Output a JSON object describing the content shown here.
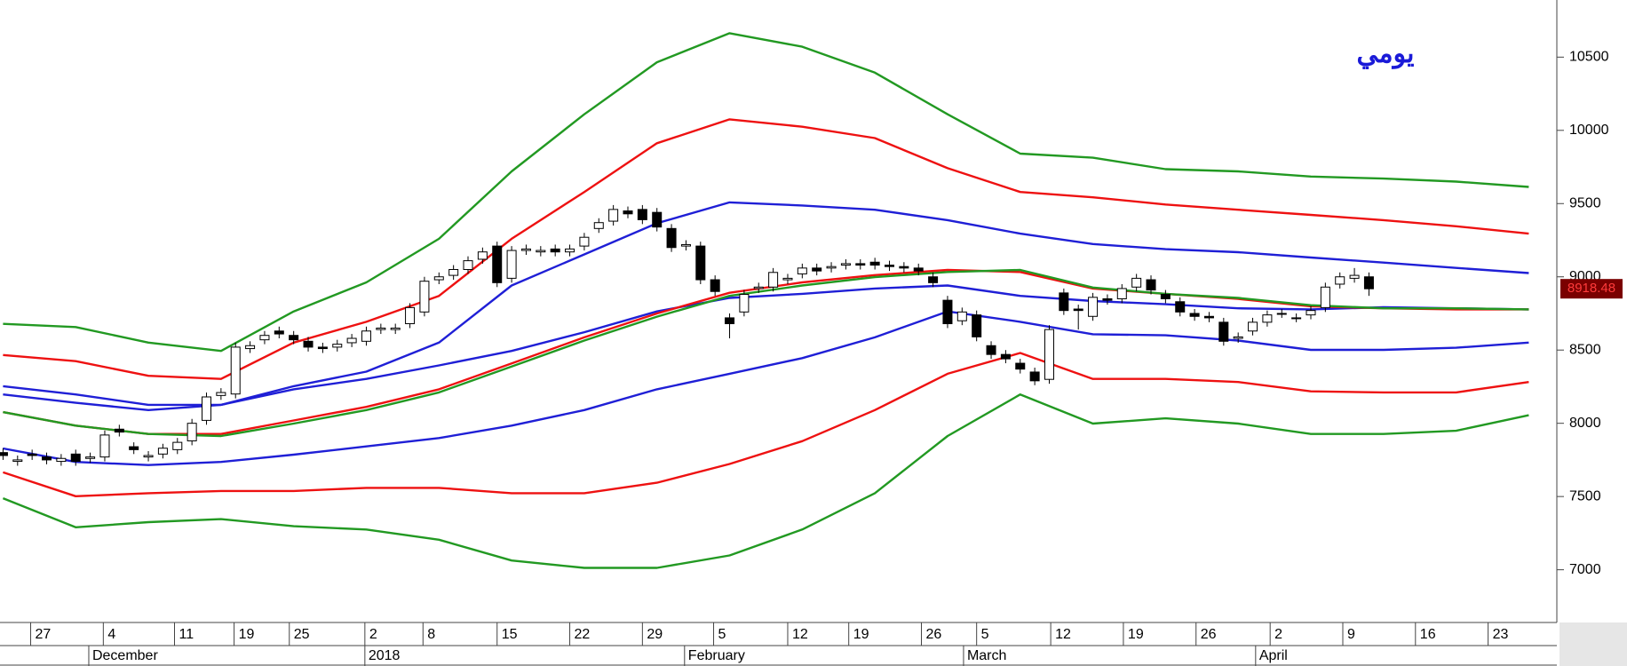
{
  "chart_data": {
    "type": "candlestick",
    "title": "يومي",
    "xlim": [
      -0.21,
      106.93
    ],
    "ylim": [
      6640,
      10890
    ],
    "yticks": [
      7000,
      7500,
      8000,
      8500,
      9000,
      9500,
      10000,
      10500
    ],
    "xticks": [
      {
        "value": 1.9,
        "label": "27"
      },
      {
        "value": 6.9,
        "label": "4"
      },
      {
        "value": 11.8,
        "label": "11"
      },
      {
        "value": 15.9,
        "label": "19"
      },
      {
        "value": 19.7,
        "label": "25"
      },
      {
        "value": 24.9,
        "label": "2"
      },
      {
        "value": 28.9,
        "label": "8"
      },
      {
        "value": 34,
        "label": "15"
      },
      {
        "value": 39,
        "label": "22"
      },
      {
        "value": 44,
        "label": "29"
      },
      {
        "value": 48.9,
        "label": "5"
      },
      {
        "value": 54,
        "label": "12"
      },
      {
        "value": 58.2,
        "label": "19"
      },
      {
        "value": 63.2,
        "label": "26"
      },
      {
        "value": 67,
        "label": "5"
      },
      {
        "value": 72.1,
        "label": "12"
      },
      {
        "value": 77.1,
        "label": "19"
      },
      {
        "value": 82.1,
        "label": "26"
      },
      {
        "value": 87.2,
        "label": "2"
      },
      {
        "value": 92.2,
        "label": "9"
      },
      {
        "value": 97.2,
        "label": "16"
      },
      {
        "value": 102.2,
        "label": "23"
      }
    ],
    "month_ticks": [
      {
        "value": 5.9,
        "label": "December"
      },
      {
        "value": 24.9,
        "label": "2018"
      },
      {
        "value": 46.9,
        "label": "February"
      },
      {
        "value": 66.1,
        "label": "March"
      },
      {
        "value": 86.2,
        "label": "April"
      }
    ],
    "current_price": 8918.48,
    "candles": {
      "up_color": "#ffffff",
      "down_color": "#000000",
      "x": [
        0,
        1,
        2,
        3,
        4,
        5,
        6,
        7,
        8,
        9,
        10,
        11,
        12,
        13,
        14,
        15,
        16,
        17,
        18,
        19,
        20,
        21,
        22,
        23,
        24,
        25,
        26,
        27,
        28,
        29,
        30,
        31,
        32,
        33,
        34,
        35,
        36,
        37,
        38,
        39,
        40,
        41,
        42,
        43,
        44,
        45,
        46,
        47,
        48,
        49,
        50,
        51,
        52,
        53,
        54,
        55,
        56,
        57,
        58,
        59,
        60,
        61,
        62,
        63,
        64,
        65,
        66,
        67,
        68,
        69,
        70,
        71,
        72,
        73,
        74,
        75,
        76,
        77,
        78,
        79,
        80,
        81,
        82,
        83,
        84,
        85,
        86,
        87,
        88,
        89,
        90,
        91,
        92,
        93,
        94
      ],
      "open": [
        7800,
        7740,
        7790,
        7770,
        7740,
        7790,
        7760,
        7770,
        7960,
        7840,
        7770,
        7790,
        7820,
        7880,
        8020,
        8190,
        8200,
        8510,
        8570,
        8630,
        8600,
        8560,
        8520,
        8520,
        8550,
        8560,
        8640,
        8640,
        8680,
        8760,
        8980,
        9010,
        9050,
        9120,
        9210,
        8990,
        9180,
        9170,
        9190,
        9170,
        9210,
        9330,
        9380,
        9450,
        9460,
        9440,
        9330,
        9210,
        9210,
        8980,
        8720,
        8760,
        8920,
        8930,
        8980,
        9020,
        9060,
        9060,
        9080,
        9090,
        9100,
        9080,
        9070,
        9060,
        9000,
        8840,
        8700,
        8740,
        8530,
        8470,
        8410,
        8350,
        8300,
        8890,
        8780,
        8730,
        8850,
        8850,
        8930,
        8980,
        8880,
        8830,
        8750,
        8730,
        8690,
        8580,
        8630,
        8690,
        8750,
        8720,
        8740,
        8790,
        8950,
        8990,
        9000
      ],
      "high": [
        7830,
        7780,
        7820,
        7800,
        7790,
        7820,
        7800,
        7950,
        7990,
        7870,
        7810,
        7860,
        7900,
        8030,
        8210,
        8240,
        8550,
        8560,
        8630,
        8660,
        8630,
        8590,
        8550,
        8570,
        8610,
        8660,
        8680,
        8680,
        8820,
        9000,
        9030,
        9080,
        9140,
        9200,
        9240,
        9210,
        9220,
        9210,
        9220,
        9220,
        9300,
        9400,
        9490,
        9480,
        9490,
        9470,
        9360,
        9250,
        9240,
        9010,
        8750,
        8910,
        8960,
        9060,
        9020,
        9090,
        9090,
        9100,
        9120,
        9120,
        9130,
        9110,
        9100,
        9090,
        9030,
        8870,
        8790,
        8770,
        8560,
        8500,
        8440,
        8380,
        8670,
        8920,
        8810,
        8890,
        8880,
        8950,
        9020,
        9010,
        8910,
        8860,
        8780,
        8760,
        8720,
        8620,
        8720,
        8770,
        8780,
        8750,
        8800,
        8960,
        9030,
        9060,
        9030
      ],
      "low": [
        7750,
        7710,
        7750,
        7720,
        7710,
        7710,
        7730,
        7740,
        7910,
        7790,
        7740,
        7760,
        7790,
        7850,
        7990,
        8160,
        8170,
        8480,
        8540,
        8580,
        8540,
        8490,
        8480,
        8490,
        8520,
        8530,
        8610,
        8610,
        8650,
        8730,
        8950,
        8980,
        9020,
        9090,
        8930,
        8960,
        9150,
        9140,
        9140,
        9140,
        9180,
        9300,
        9350,
        9400,
        9360,
        9310,
        9170,
        9180,
        8950,
        8870,
        8580,
        8730,
        8890,
        8900,
        8950,
        8990,
        9010,
        9030,
        9050,
        9050,
        9050,
        9040,
        9030,
        9010,
        8930,
        8650,
        8670,
        8560,
        8440,
        8410,
        8340,
        8260,
        8270,
        8740,
        8640,
        8700,
        8810,
        8820,
        8900,
        8880,
        8820,
        8730,
        8700,
        8690,
        8530,
        8550,
        8600,
        8660,
        8720,
        8690,
        8710,
        8760,
        8920,
        8960,
        8870
      ],
      "close": [
        7780,
        7750,
        7780,
        7750,
        7760,
        7740,
        7770,
        7920,
        7940,
        7820,
        7780,
        7830,
        7870,
        8000,
        8180,
        8210,
        8520,
        8530,
        8600,
        8610,
        8570,
        8520,
        8510,
        8540,
        8580,
        8630,
        8650,
        8650,
        8790,
        8970,
        9000,
        9050,
        9110,
        9170,
        8960,
        9180,
        9190,
        9180,
        9170,
        9190,
        9270,
        9370,
        9460,
        9430,
        9390,
        9340,
        9200,
        9220,
        8980,
        8900,
        8680,
        8880,
        8930,
        9030,
        8990,
        9060,
        9040,
        9070,
        9090,
        9080,
        9080,
        9070,
        9060,
        9040,
        8960,
        8680,
        8760,
        8590,
        8470,
        8440,
        8370,
        8290,
        8640,
        8770,
        8770,
        8860,
        8840,
        8920,
        8990,
        8910,
        8850,
        8760,
        8730,
        8720,
        8560,
        8590,
        8690,
        8740,
        8750,
        8720,
        8770,
        8930,
        9000,
        9010,
        8918.48
      ]
    },
    "overlay": {
      "type": "line",
      "x": [
        0,
        5,
        10,
        15,
        20,
        25,
        30,
        35,
        40,
        45,
        50,
        55,
        60,
        65,
        70,
        75,
        80,
        85,
        90,
        95,
        100,
        105
      ],
      "series": [
        {
          "color": "#229922",
          "values": [
            8679,
            8657,
            8551,
            8494,
            8764,
            8962,
            9260,
            9720,
            10110,
            10465,
            10663,
            10571,
            10394,
            10110,
            9841,
            9813,
            9735,
            9720,
            9685,
            9671,
            9650,
            9614
          ]
        },
        {
          "color": "#ee1111",
          "values": [
            8466,
            8424,
            8324,
            8303,
            8551,
            8693,
            8870,
            9260,
            9579,
            9912,
            10075,
            10025,
            9947,
            9742,
            9579,
            9543,
            9494,
            9458,
            9423,
            9387,
            9345,
            9295
          ]
        },
        {
          "color": "#1f1fd6",
          "values": [
            8253,
            8197,
            8126,
            8126,
            8253,
            8353,
            8551,
            8941,
            9153,
            9366,
            9508,
            9487,
            9458,
            9387,
            9295,
            9224,
            9189,
            9168,
            9132,
            9097,
            9061,
            9026
          ]
        },
        {
          "color": "#1f1fd6",
          "values": [
            8197,
            8140,
            8090,
            8126,
            8232,
            8303,
            8395,
            8494,
            8622,
            8764,
            8856,
            8884,
            8920,
            8941,
            8870,
            8835,
            8813,
            8785,
            8778,
            8792,
            8785,
            8778
          ]
        },
        {
          "color": "#ee1111",
          "values": [
            8076,
            7984,
            7927,
            7927,
            8019,
            8112,
            8232,
            8409,
            8587,
            8750,
            8891,
            8962,
            9012,
            9047,
            9033,
            8920,
            8884,
            8849,
            8799,
            8785,
            8778,
            8778
          ]
        },
        {
          "color": "#229922",
          "values": [
            8076,
            7984,
            7927,
            7913,
            7998,
            8090,
            8211,
            8388,
            8565,
            8728,
            8870,
            8941,
            8998,
            9033,
            9047,
            8927,
            8884,
            8856,
            8806,
            8785,
            8785,
            8778
          ]
        },
        {
          "color": "#1f1fd6",
          "values": [
            7828,
            7736,
            7715,
            7736,
            7786,
            7842,
            7899,
            7984,
            8090,
            8232,
            8338,
            8445,
            8587,
            8764,
            8693,
            8608,
            8601,
            8565,
            8501,
            8501,
            8516,
            8551
          ]
        },
        {
          "color": "#ee1111",
          "values": [
            7665,
            7502,
            7523,
            7538,
            7538,
            7559,
            7559,
            7523,
            7523,
            7594,
            7722,
            7878,
            8090,
            8338,
            8480,
            8303,
            8303,
            8282,
            8218,
            8211,
            8211,
            8282
          ]
        },
        {
          "color": "#229922",
          "values": [
            7488,
            7290,
            7325,
            7346,
            7297,
            7275,
            7205,
            7063,
            7013,
            7013,
            7098,
            7275,
            7523,
            7913,
            8197,
            7998,
            8034,
            7998,
            7927,
            7927,
            7949,
            8055
          ]
        }
      ]
    }
  }
}
